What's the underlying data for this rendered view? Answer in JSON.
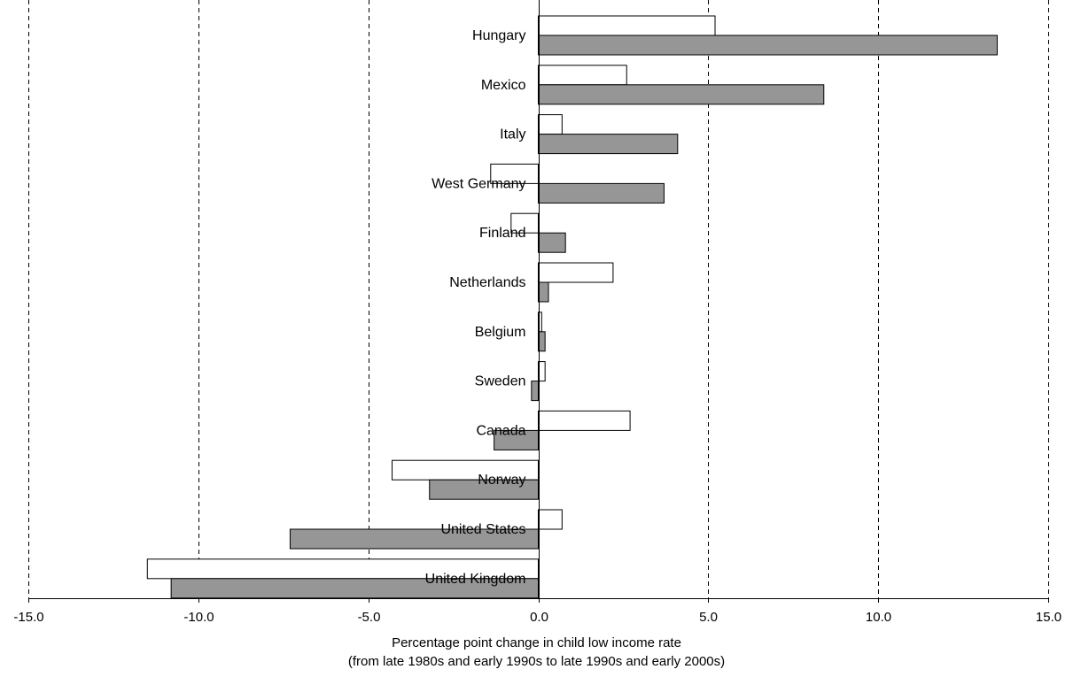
{
  "chart_data": {
    "type": "bar",
    "orientation": "horizontal",
    "categories": [
      "Hungary",
      "Mexico",
      "Italy",
      "West Germany",
      "Finland",
      "Netherlands",
      "Belgium",
      "Sweden",
      "Canada",
      "Norway",
      "United States",
      "United Kingdom"
    ],
    "series": [
      {
        "color": "#ffffff",
        "values": [
          5.2,
          2.6,
          0.7,
          -1.4,
          -0.8,
          2.2,
          0.1,
          0.2,
          2.7,
          -4.3,
          0.7,
          -11.5
        ]
      },
      {
        "color": "#969696",
        "values": [
          13.5,
          8.4,
          4.1,
          3.7,
          0.8,
          0.3,
          0.2,
          -0.2,
          -1.3,
          -3.2,
          -7.3,
          -10.8
        ]
      }
    ],
    "xlim": [
      -15.0,
      15.0
    ],
    "xticks": [
      "-15.0",
      "-10.0",
      "-5.0",
      "0.0",
      "5.0",
      "10.0",
      "15.0"
    ],
    "xlabel_line1": "Percentage point change in child low income rate",
    "xlabel_line2": "(from late 1980s and early 1990s to late 1990s and early 2000s)",
    "gridlines": "vertical dashed",
    "legend": "none"
  }
}
